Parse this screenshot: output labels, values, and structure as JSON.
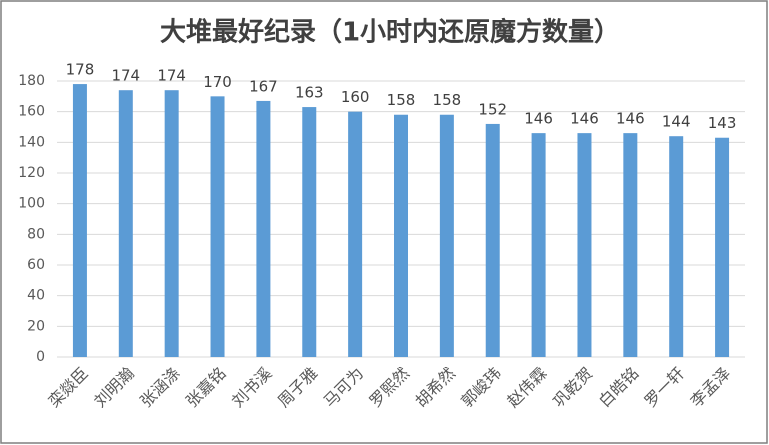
{
  "chart_data": {
    "type": "bar",
    "title": "大堆最好纪录（1小时内还原魔方数量）",
    "categories": [
      "栾燚臣",
      "刘明瀚",
      "张涵涤",
      "张嘉铭",
      "刘书溪",
      "周子雅",
      "马可为",
      "罗熙然",
      "胡希然",
      "郭峻玮",
      "赵伟霖",
      "巩乾贺",
      "白皓铭",
      "罗一轩",
      "李孟泽"
    ],
    "values": [
      178,
      174,
      174,
      170,
      167,
      163,
      160,
      158,
      158,
      152,
      146,
      146,
      146,
      144,
      143
    ],
    "color": "#5b9bd5",
    "ylim": [
      0,
      180
    ],
    "yticks": [
      0,
      20,
      40,
      60,
      80,
      100,
      120,
      140,
      160,
      180
    ],
    "grid": true
  }
}
